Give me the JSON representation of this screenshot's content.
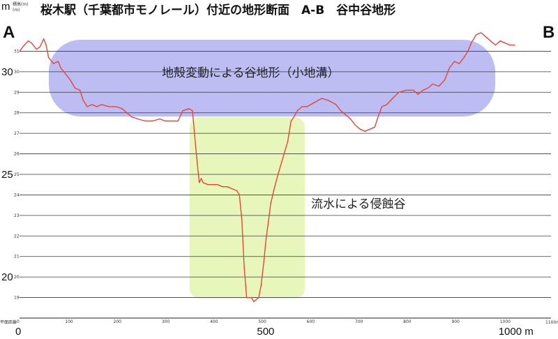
{
  "title": "桜木駅（千葉都市モノレール）付近の地形断面　A-B　谷中谷地形",
  "end_labels": {
    "start": "A",
    "end": "B"
  },
  "chart_data": {
    "type": "line",
    "ylabel_unit": "m",
    "ylabel_small": "標高(m)",
    "xlabel_small": "平面距離",
    "x_unit_small": "(m)",
    "xlim": [
      0,
      1100
    ],
    "ylim": [
      18,
      32
    ],
    "y_major_ticks": [
      30,
      25,
      20
    ],
    "y_minor_ticks": [
      31,
      30,
      29,
      28,
      27,
      26,
      25,
      24,
      23,
      22,
      21,
      20,
      19
    ],
    "x_minor_ticks": [
      0,
      100,
      200,
      300,
      400,
      500,
      600,
      700,
      800,
      900,
      1000
    ],
    "x_minor_last_label": "1100m",
    "x_major_labels": [
      {
        "x": 0,
        "label": "0"
      },
      {
        "x": 500,
        "label": "500"
      },
      {
        "x": 1000,
        "label": "1000 m"
      }
    ],
    "series": [
      {
        "color": "#e8462f",
        "points": [
          [
            0,
            31.0
          ],
          [
            10,
            31.3
          ],
          [
            18,
            31.5
          ],
          [
            25,
            31.4
          ],
          [
            35,
            31.1
          ],
          [
            42,
            31.2
          ],
          [
            50,
            31.6
          ],
          [
            55,
            31.3
          ],
          [
            60,
            30.7
          ],
          [
            70,
            30.4
          ],
          [
            80,
            30.5
          ],
          [
            85,
            30.2
          ],
          [
            95,
            29.9
          ],
          [
            105,
            29.6
          ],
          [
            115,
            29.2
          ],
          [
            125,
            29.1
          ],
          [
            132,
            28.6
          ],
          [
            140,
            28.3
          ],
          [
            150,
            28.4
          ],
          [
            160,
            28.3
          ],
          [
            170,
            28.4
          ],
          [
            185,
            28.3
          ],
          [
            200,
            28.3
          ],
          [
            212,
            28.2
          ],
          [
            222,
            28.0
          ],
          [
            232,
            27.8
          ],
          [
            245,
            27.7
          ],
          [
            260,
            27.6
          ],
          [
            275,
            27.6
          ],
          [
            290,
            27.7
          ],
          [
            302,
            27.6
          ],
          [
            315,
            27.6
          ],
          [
            328,
            27.6
          ],
          [
            338,
            28.1
          ],
          [
            350,
            28.2
          ],
          [
            358,
            28.1
          ],
          [
            362,
            27.0
          ],
          [
            368,
            25.5
          ],
          [
            372,
            24.6
          ],
          [
            376,
            24.8
          ],
          [
            380,
            24.6
          ],
          [
            390,
            24.5
          ],
          [
            400,
            24.5
          ],
          [
            410,
            24.5
          ],
          [
            420,
            24.4
          ],
          [
            430,
            24.4
          ],
          [
            440,
            24.3
          ],
          [
            450,
            24.2
          ],
          [
            455,
            24.0
          ],
          [
            460,
            22.8
          ],
          [
            465,
            20.5
          ],
          [
            470,
            19.0
          ],
          [
            475,
            19.0
          ],
          [
            480,
            19.0
          ],
          [
            485,
            18.8
          ],
          [
            490,
            18.9
          ],
          [
            495,
            19.0
          ],
          [
            500,
            19.6
          ],
          [
            505,
            20.6
          ],
          [
            510,
            21.8
          ],
          [
            515,
            22.7
          ],
          [
            520,
            23.6
          ],
          [
            527,
            24.3
          ],
          [
            535,
            25.0
          ],
          [
            545,
            25.8
          ],
          [
            555,
            26.6
          ],
          [
            562,
            27.6
          ],
          [
            568,
            27.8
          ],
          [
            575,
            28.1
          ],
          [
            585,
            28.3
          ],
          [
            595,
            28.3
          ],
          [
            610,
            28.5
          ],
          [
            625,
            28.7
          ],
          [
            640,
            28.6
          ],
          [
            655,
            28.4
          ],
          [
            665,
            28.1
          ],
          [
            675,
            27.9
          ],
          [
            685,
            27.7
          ],
          [
            695,
            27.4
          ],
          [
            705,
            27.2
          ],
          [
            715,
            27.1
          ],
          [
            725,
            27.2
          ],
          [
            735,
            27.3
          ],
          [
            742,
            27.8
          ],
          [
            750,
            28.3
          ],
          [
            760,
            28.4
          ],
          [
            772,
            28.7
          ],
          [
            785,
            29.0
          ],
          [
            800,
            29.1
          ],
          [
            815,
            29.1
          ],
          [
            825,
            28.9
          ],
          [
            835,
            29.1
          ],
          [
            845,
            29.2
          ],
          [
            855,
            29.4
          ],
          [
            868,
            29.3
          ],
          [
            880,
            29.6
          ],
          [
            890,
            30.2
          ],
          [
            900,
            30.5
          ],
          [
            910,
            30.4
          ],
          [
            920,
            30.7
          ],
          [
            928,
            31.0
          ],
          [
            935,
            31.4
          ],
          [
            945,
            31.8
          ],
          [
            955,
            31.9
          ],
          [
            965,
            31.7
          ],
          [
            975,
            31.5
          ],
          [
            985,
            31.3
          ],
          [
            995,
            31.5
          ],
          [
            1005,
            31.4
          ],
          [
            1015,
            31.3
          ],
          [
            1025,
            31.3
          ]
        ]
      }
    ],
    "annotations": [
      {
        "id": "tectonic",
        "text": "地殻変動による谷地形（小地溝）",
        "color": "#b5b7f2"
      },
      {
        "id": "erosion",
        "text": "流水による侵蝕谷",
        "color": "#e6f7b8"
      }
    ],
    "grid": true
  }
}
